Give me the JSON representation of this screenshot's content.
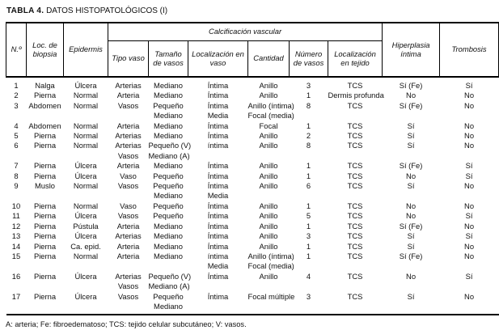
{
  "title": {
    "bold": "TABLA 4.",
    "rest": "DATOS HISTOPATOLÓGICOS (I)"
  },
  "table": {
    "group_header": "Calcificación vascular",
    "columns": [
      "N.º",
      "Loc. de biopsia",
      "Epidermis",
      "Tipo vaso",
      "Tamaño de vasos",
      "Localización en vaso",
      "Cantidad",
      "Número de vasos",
      "Localización en tejido",
      "Hiperplasia íntima",
      "Trombosis"
    ],
    "rows": [
      [
        "1",
        "Nalga",
        "Úlcera",
        "Arterias",
        "Mediano",
        "Íntima",
        "Anillo",
        "3",
        "TCS",
        "Sí (Fe)",
        "Sí"
      ],
      [
        "2",
        "Pierna",
        "Normal",
        "Arteria",
        "Mediano",
        "Íntima",
        "Anillo",
        "1",
        "Dermis profunda",
        "No",
        "No"
      ],
      [
        "3",
        "Abdomen",
        "Normal",
        "Vasos",
        [
          "Pequeño",
          "Mediano"
        ],
        [
          "Íntima",
          "Media"
        ],
        [
          "Anillo (íntima)",
          "Focal (media)"
        ],
        "8",
        "TCS",
        "Sí (Fe)",
        "No"
      ],
      [
        "4",
        "Abdomen",
        "Normal",
        "Arteria",
        "Mediano",
        "Íntima",
        "Focal",
        "1",
        "TCS",
        "Sí",
        "No"
      ],
      [
        "5",
        "Pierna",
        "Normal",
        "Arterias",
        "Mediano",
        "Íntima",
        "Anillo",
        "2",
        "TCS",
        "Sí",
        "No"
      ],
      [
        "6",
        "Pierna",
        "Normal",
        [
          "Arterias",
          "Vasos"
        ],
        [
          "Pequeño (V)",
          "Mediano (A)"
        ],
        "íntima",
        "Anillo",
        "8",
        "TCS",
        "Sí",
        "No"
      ],
      [
        "7",
        "Pierna",
        "Úlcera",
        "Arteria",
        "Mediano",
        "Íntima",
        "Anillo",
        "1",
        "TCS",
        "Sí (Fe)",
        "Sí"
      ],
      [
        "8",
        "Pierna",
        "Úlcera",
        "Vaso",
        "Pequeño",
        "Íntima",
        "Anillo",
        "1",
        "TCS",
        "No",
        "Sí"
      ],
      [
        "9",
        "Muslo",
        "Normal",
        "Vasos",
        [
          "Pequeño",
          "Mediano"
        ],
        [
          "Íntima",
          "Media"
        ],
        "Anillo",
        "6",
        "TCS",
        "Sí",
        "No"
      ],
      [
        "10",
        "Pierna",
        "Normal",
        "Vaso",
        "Pequeño",
        "Íntima",
        "Anillo",
        "1",
        "TCS",
        "No",
        "No"
      ],
      [
        "11",
        "Pierna",
        "Úlcera",
        "Vasos",
        "Pequeño",
        "Íntima",
        "Anillo",
        "5",
        "TCS",
        "No",
        "Sí"
      ],
      [
        "12",
        "Pierna",
        "Pústula",
        "Arteria",
        "Mediano",
        "Íntima",
        "Anillo",
        "1",
        "TCS",
        "Sí (Fe)",
        "No"
      ],
      [
        "13",
        "Pierna",
        "Úlcera",
        "Arterias",
        "Mediano",
        "Íntima",
        "Anillo",
        "3",
        "TCS",
        "Sí",
        "Sí"
      ],
      [
        "14",
        "Pierna",
        "Ca. epid.",
        "Arteria",
        "Mediano",
        "Íntima",
        "Anillo",
        "1",
        "TCS",
        "Sí",
        "No"
      ],
      [
        "15",
        "Pierna",
        "Normal",
        "Arteria",
        "Mediano",
        [
          "íntima",
          "Media"
        ],
        [
          "Anillo (íntima)",
          "Focal (media)"
        ],
        "1",
        "TCS",
        "Sí (Fe)",
        "No"
      ],
      [
        "16",
        "Pierna",
        "Úlcera",
        [
          "Arterias",
          "Vasos"
        ],
        [
          "Pequeño (V)",
          "Mediano (A)"
        ],
        "Íntima",
        "Anillo",
        "4",
        "TCS",
        "No",
        "Sí"
      ],
      [
        "17",
        "Pierna",
        "Úlcera",
        "Vasos",
        [
          "Pequeño",
          "Mediano"
        ],
        "Íntima",
        "Focal múltiple",
        "3",
        "TCS",
        "Sí",
        "No"
      ]
    ]
  },
  "footnote": "A: arteria; Fe: fibroedematoso; TCS: tejido celular subcutáneo; V: vasos.",
  "colors": {
    "text": "#1a1a1a",
    "border": "#000000",
    "background": "#ffffff"
  }
}
